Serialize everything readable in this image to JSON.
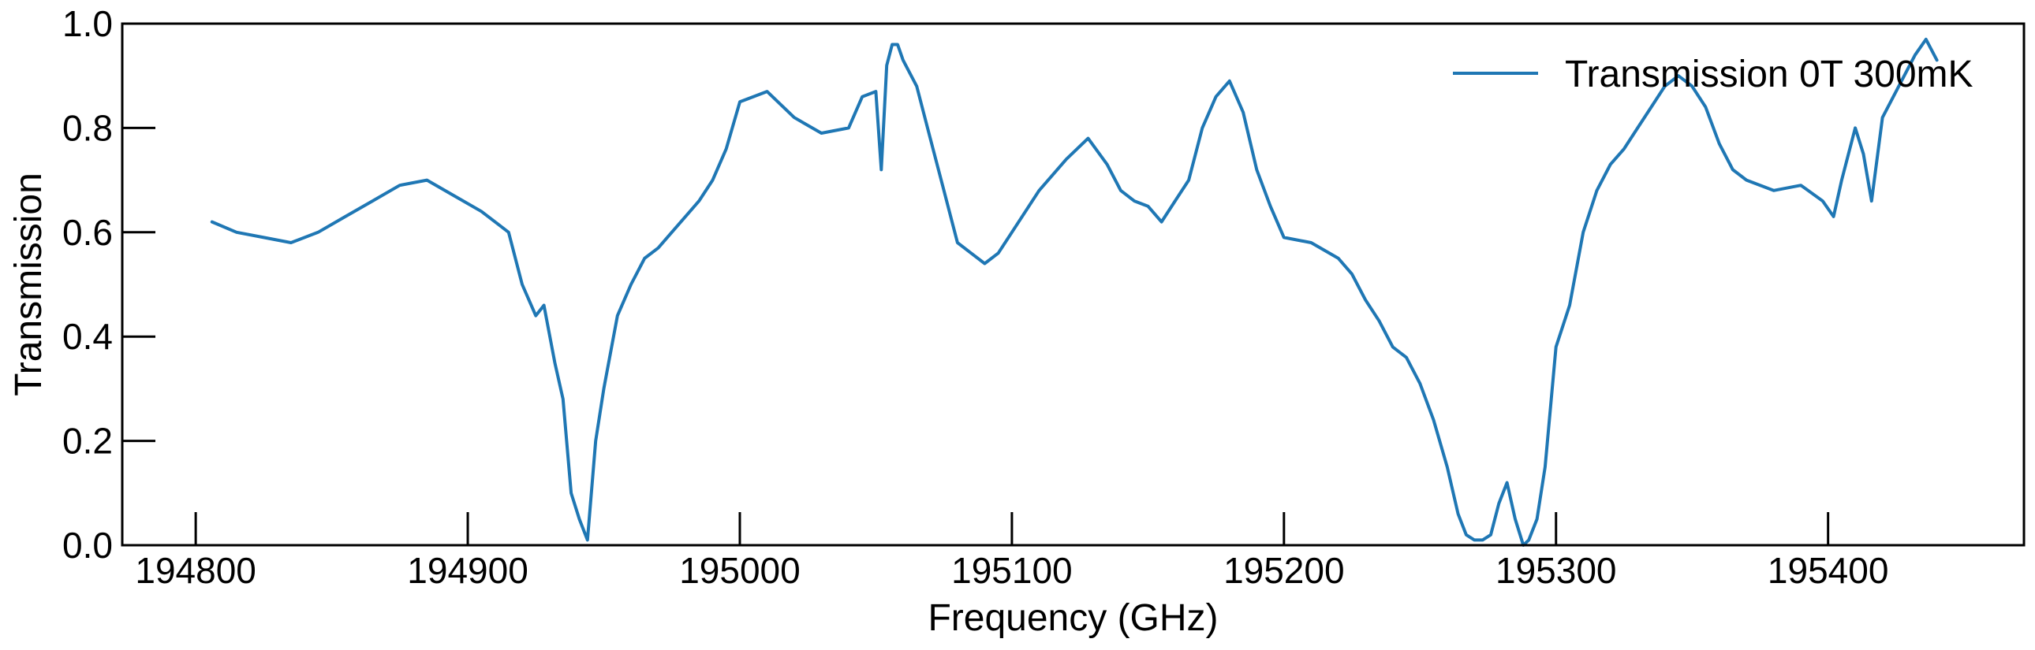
{
  "chart_data": {
    "type": "line",
    "title": "",
    "xlabel": "Frequency (GHz)",
    "ylabel": "Transmission",
    "xlim": [
      194773,
      195472
    ],
    "ylim": [
      0.0,
      1.0
    ],
    "x_ticks": [
      194800,
      194900,
      195000,
      195100,
      195200,
      195300,
      195400
    ],
    "y_ticks": [
      0.0,
      0.2,
      0.4,
      0.6,
      0.8,
      1.0
    ],
    "x_tick_labels": [
      "194800",
      "194900",
      "195000",
      "195100",
      "195200",
      "195300",
      "195400"
    ],
    "y_tick_labels": [
      "0.0",
      "0.2",
      "0.4",
      "0.6",
      "0.8",
      "1.0"
    ],
    "grid": false,
    "legend": {
      "placement": "top-right",
      "entries": [
        "Transmission 0T 300mK"
      ]
    },
    "series": [
      {
        "name": "Transmission 0T 300mK",
        "color": "#1f77b4",
        "x": [
          194806,
          194815,
          194825,
          194835,
          194845,
          194855,
          194865,
          194875,
          194885,
          194895,
          194905,
          194915,
          194920,
          194925,
          194928,
          194932,
          194935,
          194938,
          194941,
          194944,
          194947,
          194950,
          194955,
          194960,
          194965,
          194970,
          194975,
          194980,
          194985,
          194990,
          194995,
          195000,
          195010,
          195020,
          195030,
          195040,
          195045,
          195050,
          195052,
          195054,
          195056,
          195058,
          195060,
          195065,
          195070,
          195075,
          195080,
          195085,
          195090,
          195095,
          195100,
          195110,
          195120,
          195128,
          195135,
          195140,
          195145,
          195150,
          195155,
          195160,
          195165,
          195170,
          195175,
          195180,
          195185,
          195190,
          195195,
          195200,
          195210,
          195220,
          195225,
          195230,
          195235,
          195240,
          195245,
          195250,
          195255,
          195260,
          195264,
          195267,
          195270,
          195273,
          195276,
          195279,
          195282,
          195285,
          195288,
          195290,
          195293,
          195296,
          195300,
          195305,
          195310,
          195315,
          195320,
          195325,
          195330,
          195335,
          195340,
          195345,
          195350,
          195355,
          195360,
          195365,
          195370,
          195380,
          195390,
          195398,
          195402,
          195405,
          195410,
          195413,
          195416,
          195420,
          195424,
          195428,
          195432,
          195436,
          195440
        ],
        "y": [
          0.62,
          0.6,
          0.59,
          0.58,
          0.6,
          0.63,
          0.66,
          0.69,
          0.7,
          0.67,
          0.64,
          0.6,
          0.5,
          0.44,
          0.46,
          0.35,
          0.28,
          0.1,
          0.05,
          0.01,
          0.2,
          0.3,
          0.44,
          0.5,
          0.55,
          0.57,
          0.6,
          0.63,
          0.66,
          0.7,
          0.76,
          0.85,
          0.87,
          0.82,
          0.79,
          0.8,
          0.86,
          0.87,
          0.72,
          0.92,
          0.96,
          0.96,
          0.93,
          0.88,
          0.78,
          0.68,
          0.58,
          0.56,
          0.54,
          0.56,
          0.6,
          0.68,
          0.74,
          0.78,
          0.73,
          0.68,
          0.66,
          0.65,
          0.62,
          0.66,
          0.7,
          0.8,
          0.86,
          0.89,
          0.83,
          0.72,
          0.65,
          0.59,
          0.58,
          0.55,
          0.52,
          0.47,
          0.43,
          0.38,
          0.36,
          0.31,
          0.24,
          0.15,
          0.06,
          0.02,
          0.01,
          0.01,
          0.02,
          0.08,
          0.12,
          0.05,
          0.0,
          0.01,
          0.05,
          0.15,
          0.38,
          0.46,
          0.6,
          0.68,
          0.73,
          0.76,
          0.8,
          0.84,
          0.88,
          0.9,
          0.88,
          0.84,
          0.77,
          0.72,
          0.7,
          0.68,
          0.69,
          0.66,
          0.63,
          0.7,
          0.8,
          0.75,
          0.66,
          0.82,
          0.86,
          0.9,
          0.94,
          0.97,
          0.93
        ]
      }
    ]
  }
}
